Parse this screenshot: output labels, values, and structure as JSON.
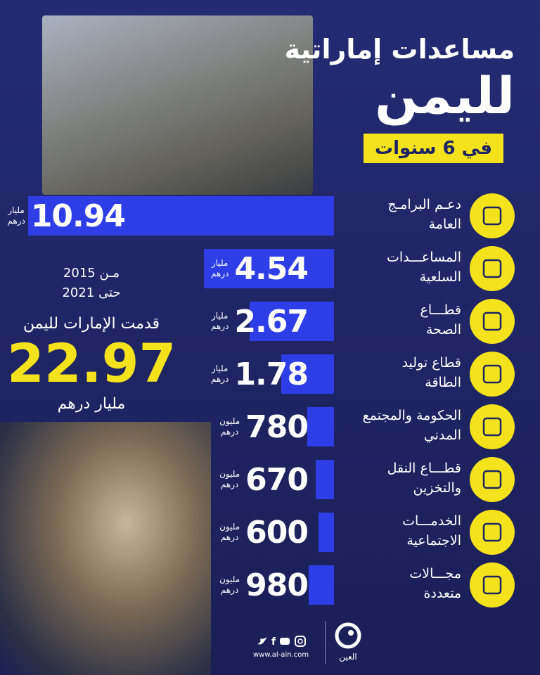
{
  "header": {
    "title": "مساعدات إماراتية",
    "main": "لليمن",
    "badge": "في 6 سنوات"
  },
  "items": [
    {
      "label": [
        "دعـم البرامـج",
        "العامة"
      ],
      "value": 10.94,
      "unit": [
        "مليار",
        "درهم"
      ]
    },
    {
      "label": [
        "المساعـــدات",
        "السلعية"
      ],
      "value": 4.54,
      "unit": [
        "مليار",
        "درهم"
      ]
    },
    {
      "label": [
        "قطـــاع",
        "الصحة"
      ],
      "value": 2.67,
      "unit": [
        "مليار",
        "درهم"
      ]
    },
    {
      "label": [
        "قطاع توليد",
        "الطاقة"
      ],
      "value": 1.78,
      "unit": [
        "مليار",
        "درهم"
      ]
    },
    {
      "label": [
        "الحكومة والمجتمع",
        "المدني"
      ],
      "value": 780,
      "unit": [
        "مليون",
        "درهم"
      ]
    },
    {
      "label": [
        "قطـــاع النقل",
        "والتخزين"
      ],
      "value": 670,
      "unit": [
        "مليون",
        "درهم"
      ]
    },
    {
      "label": [
        "الخدمـــات",
        "الاجتماعية"
      ],
      "value": 600,
      "unit": [
        "مليون",
        "درهم"
      ]
    },
    {
      "label": [
        "مجـــالات",
        "متعددة"
      ],
      "value": 980,
      "unit": [
        "مليون",
        "درهم"
      ]
    }
  ],
  "summary": {
    "from": "مـن 2015",
    "to": "حتى 2021",
    "text": "قدمت الإمارات لليمن",
    "total": 22.97,
    "unit": "مليار درهم"
  },
  "footer": {
    "url": "www.al-ain.com",
    "logo": "العين"
  }
}
